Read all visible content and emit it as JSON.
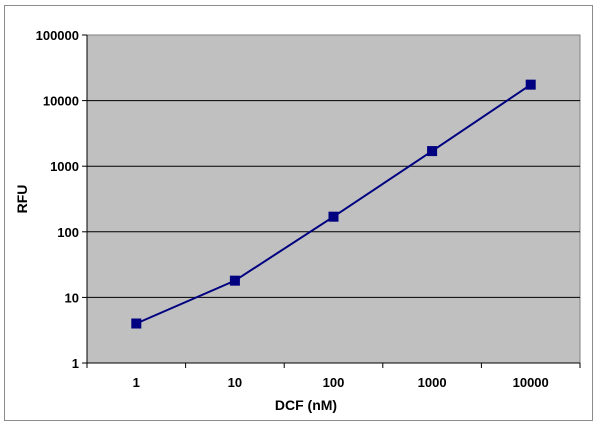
{
  "chart_data": {
    "type": "line",
    "xlabel": "DCF (nM)",
    "ylabel": "RFU",
    "x_scale": "log",
    "y_scale": "log",
    "x_ticks": [
      "1",
      "10",
      "100",
      "1000",
      "10000"
    ],
    "y_ticks": [
      "1",
      "10",
      "100",
      "1000",
      "10000",
      "100000"
    ],
    "xlim": [
      1,
      10000
    ],
    "ylim": [
      1,
      100000
    ],
    "grid": "horizontal",
    "legend": "none",
    "series": [
      {
        "x": [
          1,
          10,
          100,
          1000,
          10000
        ],
        "y": [
          4,
          18,
          170,
          1700,
          17500
        ],
        "marker": "square",
        "color": "#000080"
      }
    ],
    "plot_background": "#c0c0c0"
  }
}
